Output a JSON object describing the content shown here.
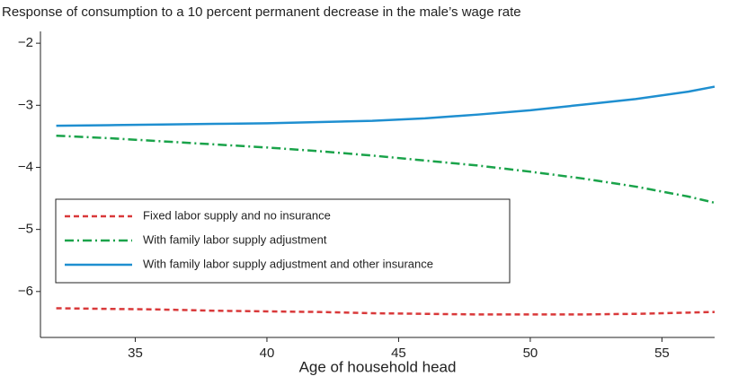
{
  "chart_data": {
    "type": "line",
    "title": "Response of consumption to a 10 percent permanent decrease in the male’s wage rate",
    "x_label": "Age of household head",
    "x": [
      32,
      34,
      36,
      38,
      40,
      42,
      44,
      46,
      48,
      50,
      52,
      54,
      56,
      57
    ],
    "series": [
      {
        "name": "Fixed labor supply and no insurance",
        "color": "#d9393a",
        "dash": "6,4",
        "values": [
          -6.27,
          -6.28,
          -6.29,
          -6.31,
          -6.32,
          -6.33,
          -6.35,
          -6.36,
          -6.37,
          -6.37,
          -6.37,
          -6.36,
          -6.34,
          -6.33
        ]
      },
      {
        "name": "With family labor supply adjustment",
        "color": "#1aa34a",
        "dash": "10,4,2,4",
        "values": [
          -3.49,
          -3.53,
          -3.58,
          -3.63,
          -3.68,
          -3.74,
          -3.81,
          -3.89,
          -3.97,
          -4.07,
          -4.18,
          -4.31,
          -4.47,
          -4.57
        ]
      },
      {
        "name": "With family labor supply adjustment and other insurance",
        "color": "#1f8fd0",
        "dash": "none",
        "values": [
          -3.33,
          -3.32,
          -3.31,
          -3.3,
          -3.29,
          -3.27,
          -3.25,
          -3.21,
          -3.15,
          -3.08,
          -2.99,
          -2.9,
          -2.78,
          -2.7
        ]
      }
    ],
    "xlim": [
      31.4,
      57
    ],
    "xticks": [
      35,
      40,
      45,
      50,
      55
    ],
    "ylim": [
      -6.74,
      -1.81
    ],
    "yticks": [
      {
        "value": -2,
        "label": "−2"
      },
      {
        "value": -3,
        "label": "−3"
      },
      {
        "value": -4,
        "label": "−4"
      },
      {
        "value": -5,
        "label": "−5"
      },
      {
        "value": -6,
        "label": "−6"
      }
    ],
    "legend": "lower-left",
    "grid": false
  }
}
